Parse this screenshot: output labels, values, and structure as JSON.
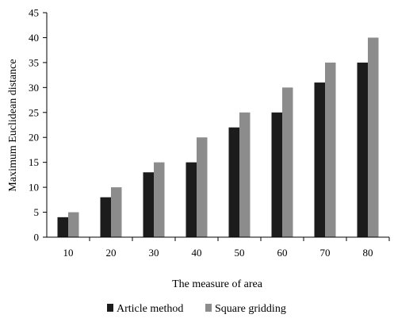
{
  "chart_data": {
    "type": "bar",
    "title": "",
    "xlabel": "The measure of area",
    "ylabel": "Maximum Euclidean distance",
    "categories": [
      "10",
      "20",
      "30",
      "40",
      "50",
      "60",
      "70",
      "80"
    ],
    "series": [
      {
        "name": "Article method",
        "values": [
          4,
          8,
          13,
          15,
          22,
          25,
          31,
          35
        ],
        "color": "#1c1c1c"
      },
      {
        "name": "Square gridding",
        "values": [
          5,
          10,
          15,
          20,
          25,
          30,
          35,
          40
        ],
        "color": "#8c8c8c"
      }
    ],
    "ylim": [
      0,
      45
    ],
    "yticks": [
      "0",
      "5",
      "10",
      "15",
      "20",
      "25",
      "30",
      "35",
      "40",
      "45"
    ],
    "grid": false,
    "legend": "bottom"
  }
}
